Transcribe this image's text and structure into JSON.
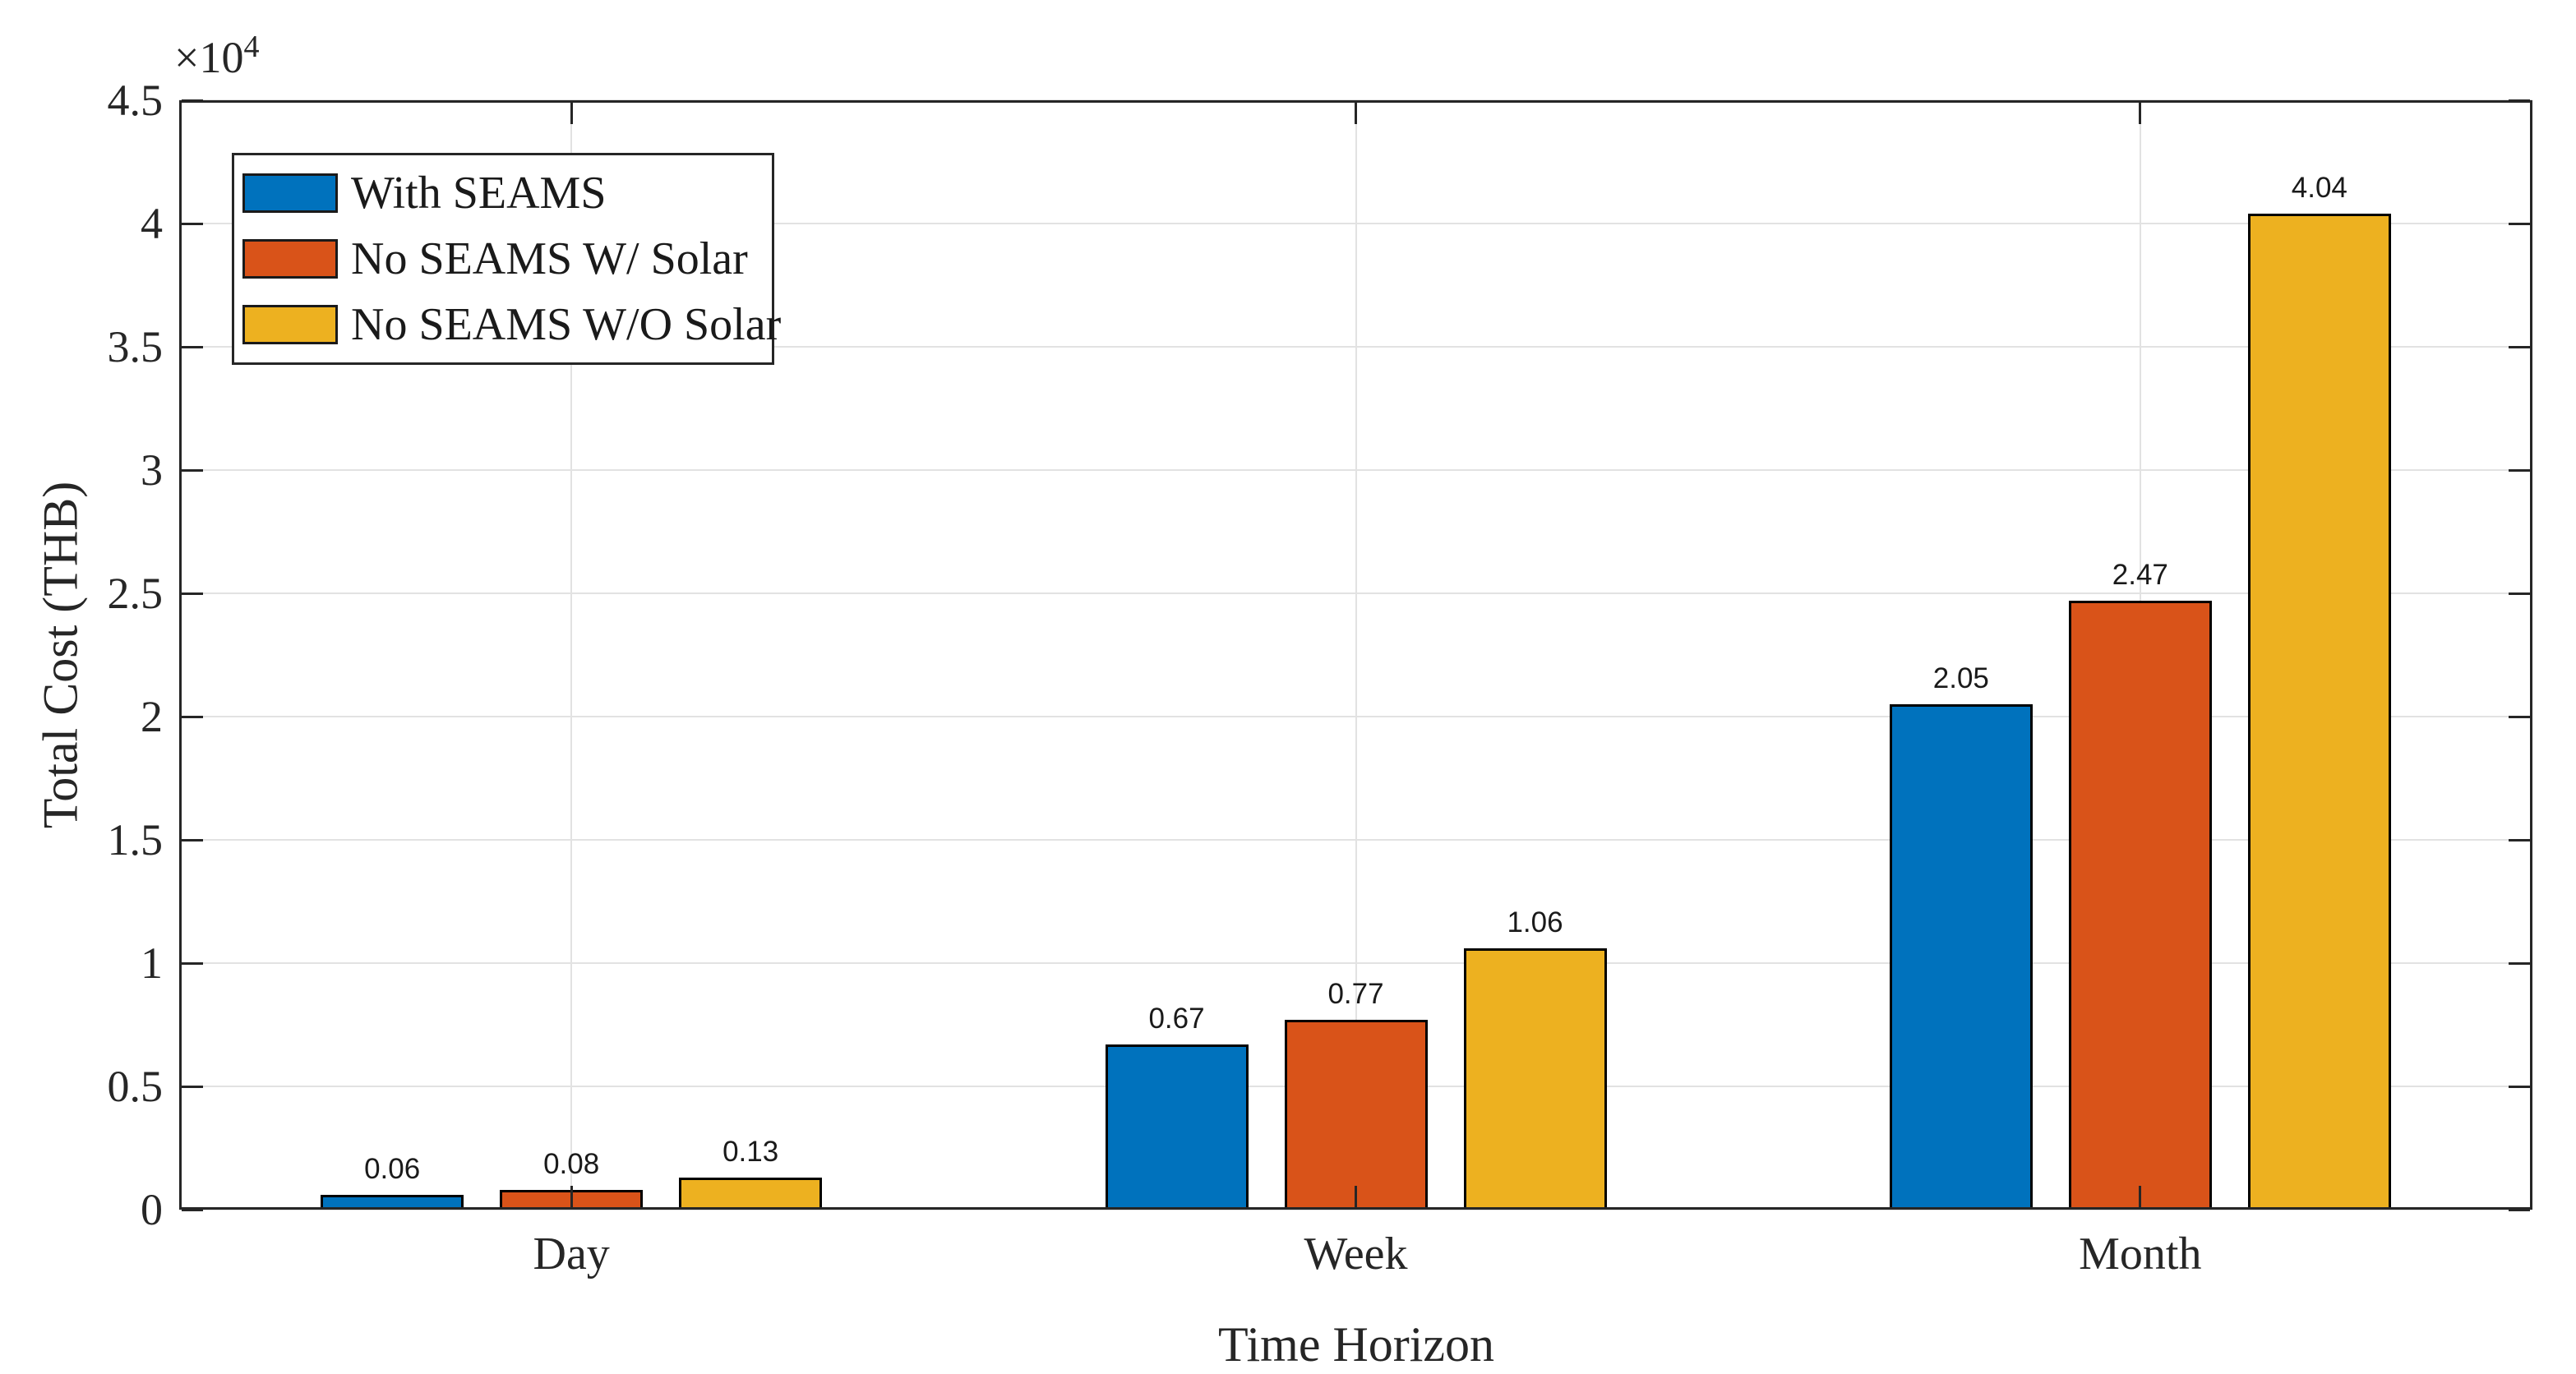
{
  "style": {
    "background_color": "#ffffff",
    "axis_color": "#262626",
    "grid_color": "#E2E2E2",
    "bar_edge_color": "#000000",
    "value_label_color": "#1a1a1a"
  },
  "axes": {
    "ylabel": "Total Cost (THB)",
    "xlabel": "Time Horizon",
    "offset_text": "×10",
    "offset_exponent": "4"
  },
  "chart_data": {
    "type": "bar",
    "title": "",
    "xlabel": "Time Horizon",
    "ylabel": "Total Cost (THB)",
    "categories": [
      "Day",
      "Week",
      "Month"
    ],
    "series": [
      {
        "name": "With SEAMS",
        "color": "#0072BD",
        "values": [
          600,
          6700,
          20500
        ]
      },
      {
        "name": "No SEAMS W/ Solar",
        "color": "#D95319",
        "values": [
          800,
          7700,
          24700
        ]
      },
      {
        "name": "No SEAMS W/O Solar",
        "color": "#EDB120",
        "values": [
          1300,
          10600,
          40400
        ]
      }
    ],
    "bar_labels": [
      [
        "0.06",
        "0.67",
        "2.05"
      ],
      [
        "0.08",
        "0.77",
        "2.47"
      ],
      [
        "0.13",
        "1.06",
        "4.04"
      ]
    ],
    "ylim": [
      0,
      45000
    ],
    "yticks": [
      0,
      5000,
      10000,
      15000,
      20000,
      25000,
      30000,
      35000,
      40000,
      45000
    ],
    "ytick_labels": [
      "0",
      "0.5",
      "1",
      "1.5",
      "2",
      "2.5",
      "3",
      "3.5",
      "4",
      "4.5"
    ],
    "y_multiplier": 10000,
    "grid": true,
    "legend_position": "top-left"
  }
}
